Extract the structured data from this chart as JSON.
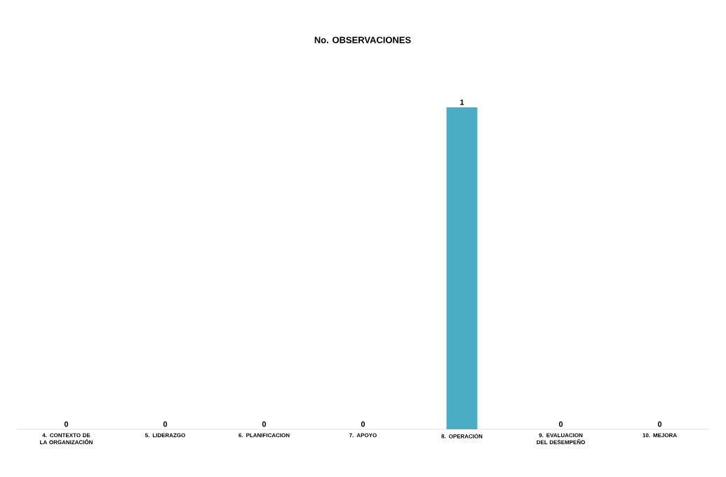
{
  "chart_data": {
    "type": "bar",
    "title": "No. OBSERVACIONES",
    "categories": [
      "4. CONTEXTO DE LA ORGANIZACIÓN",
      "5. LIDERAZGO",
      "6. PLANIFICACION",
      "7. APOYO",
      "8. OPERACIÓN",
      "9. EVALUACION DEL DESEMPEÑO",
      "10. MEJORA"
    ],
    "values": [
      0,
      0,
      0,
      0,
      1,
      0,
      0
    ],
    "color": "#4bacc6",
    "data_labels": true
  }
}
